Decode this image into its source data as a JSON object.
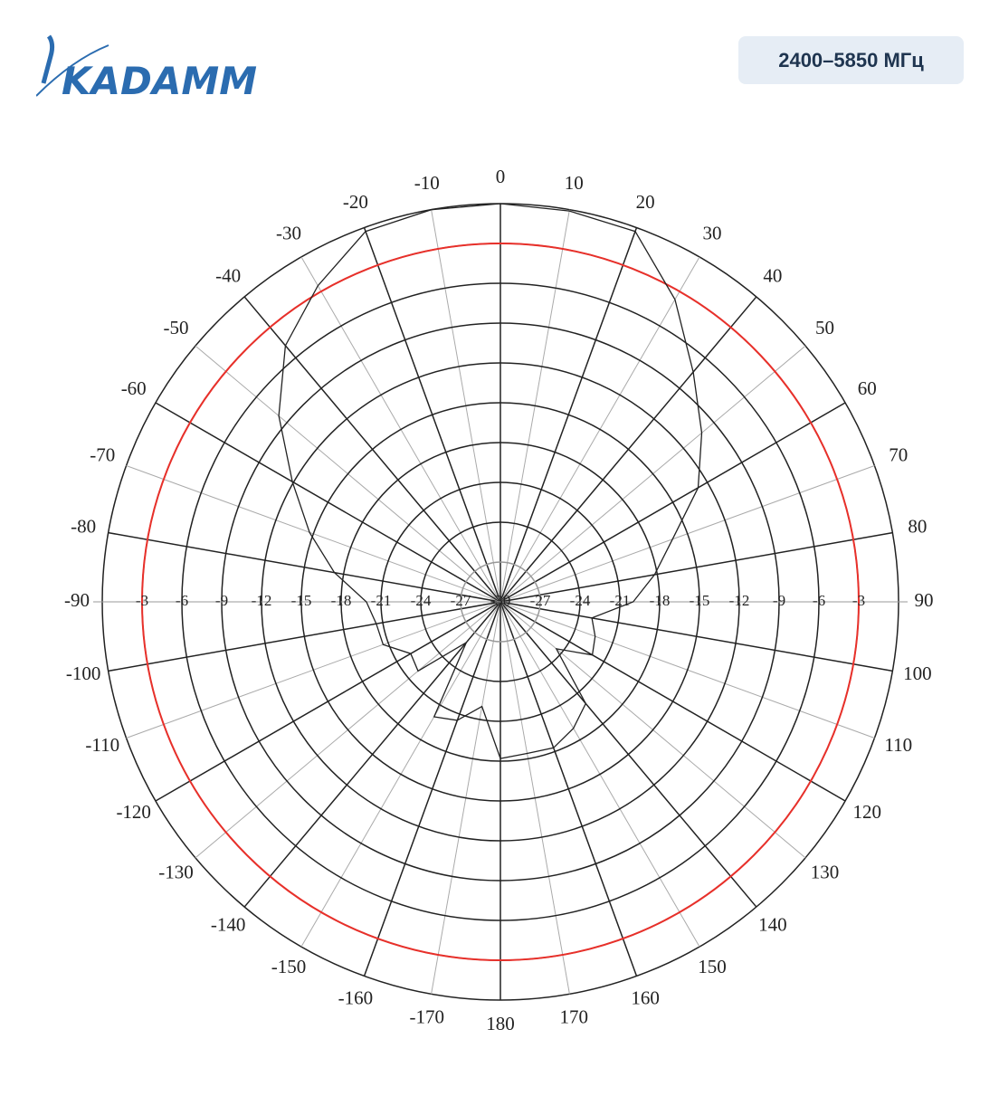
{
  "header": {
    "logo": "KADAMM",
    "band": "2400–5850 МГц"
  },
  "chart_data": {
    "type": "polar",
    "theta_ticks": [
      -170,
      -160,
      -150,
      -140,
      -130,
      -120,
      -110,
      -100,
      -90,
      -80,
      -70,
      -60,
      -50,
      -40,
      -30,
      -20,
      -10,
      0,
      10,
      20,
      30,
      40,
      50,
      60,
      70,
      80,
      90,
      100,
      110,
      120,
      130,
      140,
      150,
      160,
      170,
      180
    ],
    "rlim": [
      -30,
      0
    ],
    "rticks": [
      -30,
      -27,
      -24,
      -21,
      -18,
      -15,
      -12,
      -9,
      -6,
      -3
    ],
    "reference_circle": -3,
    "reference_color": "#e8302a",
    "series": [
      {
        "color": "#222222",
        "theta": [
          -180,
          -170,
          -160,
          -150,
          -140,
          -130,
          -120,
          -110,
          -100,
          -90,
          -80,
          -70,
          -60,
          -50,
          -40,
          -30,
          -20,
          -10,
          0,
          10,
          20,
          30,
          40,
          50,
          60,
          70,
          80,
          90,
          100,
          110,
          120,
          130,
          140,
          150,
          160,
          170
        ],
        "values": [
          -18.2,
          -22,
          -20.5,
          -20,
          -26,
          -21.9,
          -22.2,
          -20.6,
          -20.5,
          -19.9,
          -17.3,
          -14.7,
          -11.9,
          -8.2,
          -4.8,
          -2.5,
          -0.3,
          0,
          0,
          -0.1,
          -0.3,
          -3.7,
          -7.4,
          -10.2,
          -12.8,
          -16.2,
          -18.2,
          -20,
          -23,
          -22.4,
          -22,
          -24.5,
          -20,
          -19,
          -18.3,
          -18.4
        ]
      }
    ]
  }
}
